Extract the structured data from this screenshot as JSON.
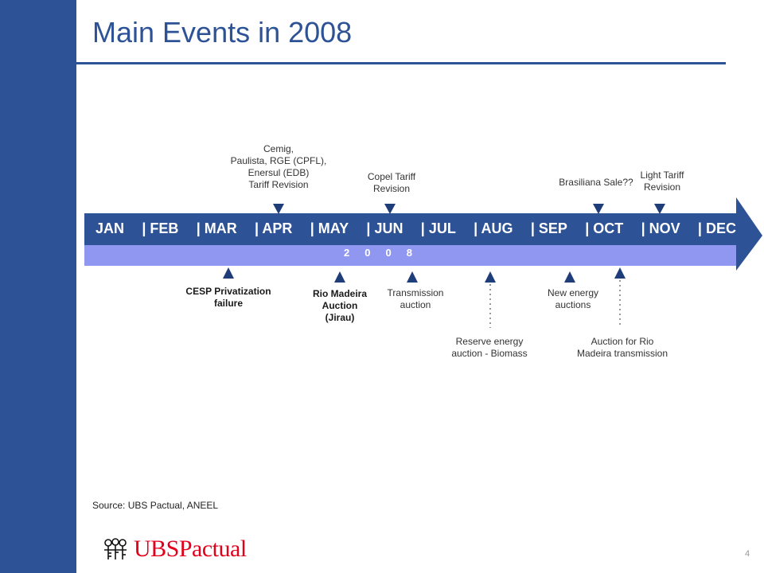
{
  "title": "Main Events in 2008",
  "months": [
    "JAN",
    "| FEB",
    "| MAR",
    "| APR",
    "| MAY",
    "|  JUN",
    "| JUL",
    "| AUG",
    "| SEP",
    "| OCT",
    "| NOV",
    "| DEC"
  ],
  "year_label": "2008",
  "events_above": [
    {
      "label": "Cemig,\nPaulista, RGE (CPFL),\nEnersul (EDB)\nTariff Revision"
    },
    {
      "label": "Copel Tariff\nRevision"
    },
    {
      "label": "Brasiliana Sale??"
    },
    {
      "label": "Light Tariff\nRevision"
    }
  ],
  "events_below": [
    {
      "label": "CESP Privatization\nfailure",
      "bold": true
    },
    {
      "label": "Rio Madeira\nAuction\n(Jirau)",
      "bold": true
    },
    {
      "label": "Transmission\nauction",
      "bold": false
    },
    {
      "label": "Reserve energy\nauction - Biomass",
      "bold": false
    },
    {
      "label": "New energy\nauctions",
      "bold": false
    },
    {
      "label": "Auction for Rio\nMadeira transmission",
      "bold": false
    }
  ],
  "source": "Source: UBS Pactual, ANEEL",
  "logo": {
    "text": "UBSPactual",
    "icon": "keys-icon"
  },
  "page_number": "4",
  "colors": {
    "brand_blue": "#2d5295",
    "timeline_blue": "#2d5295",
    "year_band": "#8f97f0",
    "marker": "#1f3d79",
    "logo_red": "#e2001a"
  }
}
